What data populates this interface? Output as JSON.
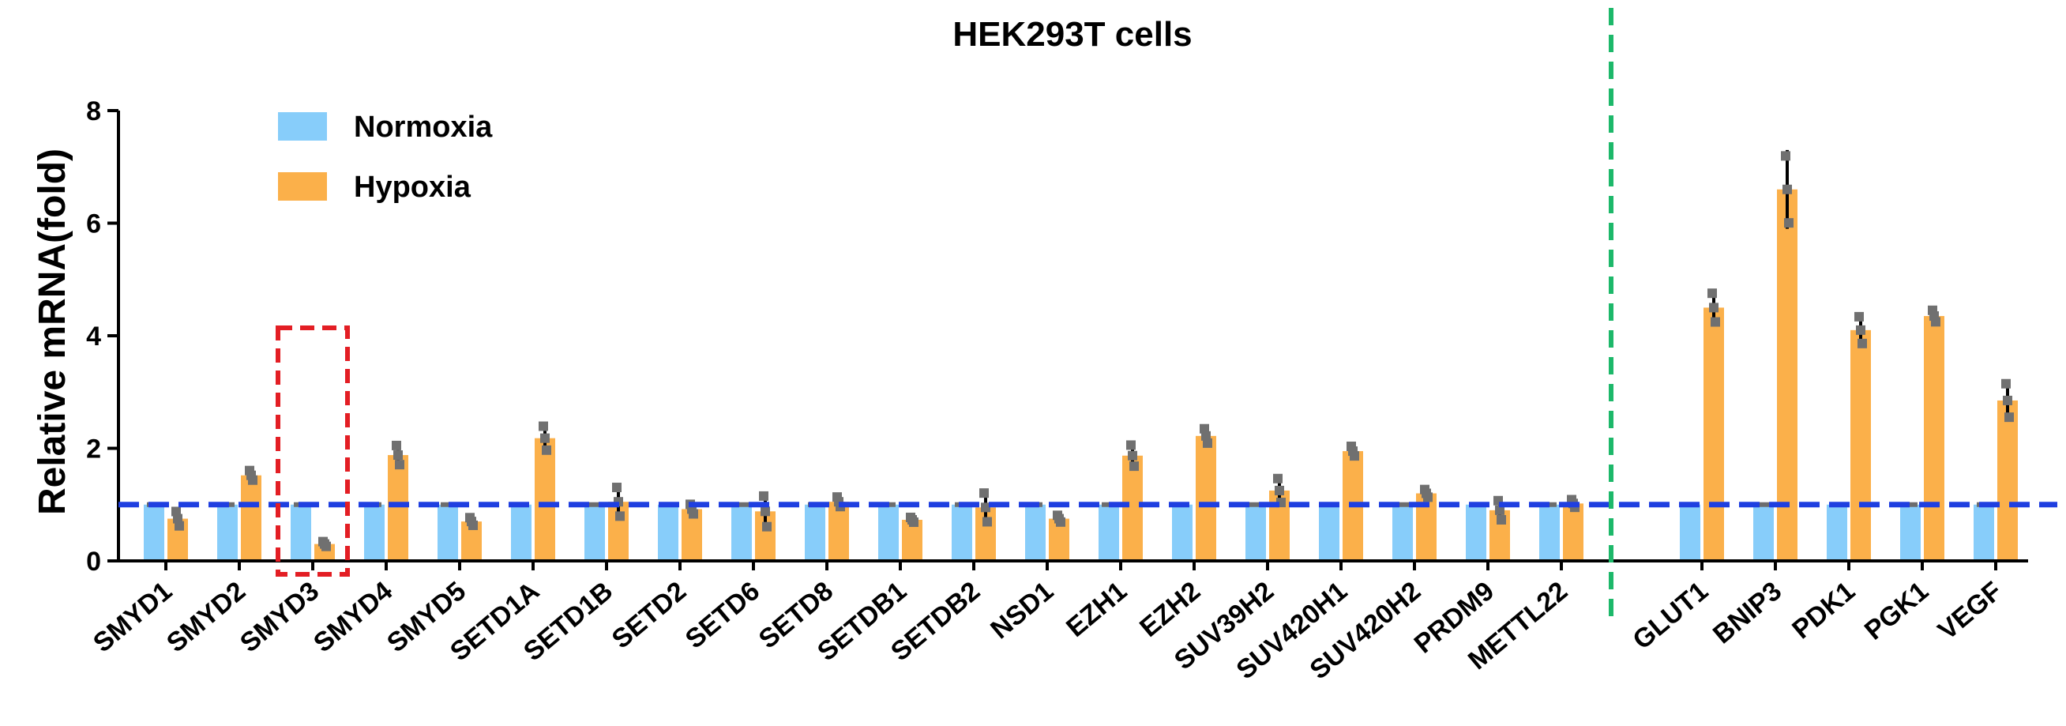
{
  "chart_data": {
    "type": "bar",
    "title": "HEK293T cells",
    "ylabel": "Relative mRNA(fold)",
    "xlabel": "",
    "ylim": [
      0,
      8
    ],
    "yticks": [
      0,
      2,
      4,
      6,
      8
    ],
    "categories": [
      "SMYD1",
      "SMYD2",
      "SMYD3",
      "SMYD4",
      "SMYD5",
      "SETD1A",
      "SETD1B",
      "SETD2",
      "SETD6",
      "SETD8",
      "SETDB1",
      "SETDB2",
      "NSD1",
      "EZH1",
      "EZH2",
      "SUV39H2",
      "SUV420H1",
      "SUV420H2",
      "PRDM9",
      "METTL22",
      "GLUT1",
      "BNIP3",
      "PDK1",
      "PGK1",
      "VEGF"
    ],
    "series": [
      {
        "name": "Normoxia",
        "color": "#87CDFA",
        "values": [
          1,
          1,
          1,
          1,
          1,
          1,
          1,
          1,
          1,
          1,
          1,
          1,
          1,
          1,
          1,
          1,
          1,
          1,
          1,
          1,
          1,
          1,
          1,
          1,
          1
        ]
      },
      {
        "name": "Hypoxia",
        "color": "#FBB04A",
        "values": [
          0.75,
          1.52,
          0.3,
          1.88,
          0.7,
          2.18,
          1.05,
          0.92,
          0.88,
          1.05,
          0.73,
          0.95,
          0.75,
          1.87,
          2.22,
          1.25,
          1.95,
          1.2,
          0.9,
          1.02,
          4.5,
          6.6,
          4.1,
          4.35,
          2.85
        ],
        "error": [
          0.15,
          0.1,
          0.05,
          0.2,
          0.08,
          0.25,
          0.3,
          0.1,
          0.32,
          0.1,
          0.05,
          0.3,
          0.07,
          0.22,
          0.15,
          0.25,
          0.1,
          0.08,
          0.2,
          0.08,
          0.3,
          0.7,
          0.28,
          0.12,
          0.35
        ]
      }
    ],
    "reference_line": {
      "y": 1,
      "color": "#1F3FE0",
      "style": "dashed"
    },
    "divider_color": "#1DB86A",
    "highlight": {
      "category": "SMYD3",
      "color": "#E31E24",
      "style": "dashed"
    },
    "legend_position": "top-left",
    "grid": false
  }
}
